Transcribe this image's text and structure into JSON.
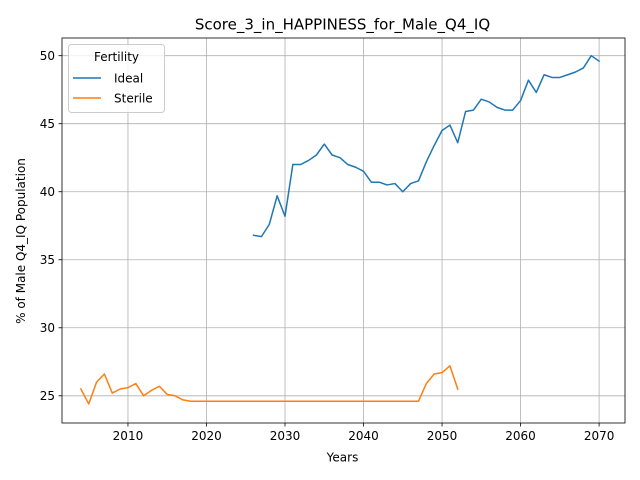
{
  "chart_data": {
    "type": "line",
    "title": "Score_3_in_HAPPINESS_for_Male_Q4_IQ",
    "xlabel": "Years",
    "ylabel": "% of Male Q4_IQ Population",
    "xlim": [
      2001.6,
      2073.3
    ],
    "ylim": [
      23.0,
      51.3
    ],
    "xticks": [
      2010,
      2020,
      2030,
      2040,
      2050,
      2060,
      2070
    ],
    "yticks": [
      25,
      30,
      35,
      40,
      45,
      50
    ],
    "grid": true,
    "legend": {
      "title": "Fertility",
      "position": "top-left"
    },
    "series": [
      {
        "name": "Ideal",
        "color": "#1f77b4",
        "x": [
          2026,
          2027,
          2028,
          2029,
          2030,
          2031,
          2032,
          2033,
          2034,
          2035,
          2036,
          2037,
          2038,
          2039,
          2040,
          2041,
          2042,
          2043,
          2044,
          2045,
          2046,
          2047,
          2048,
          2049,
          2050,
          2051,
          2052,
          2053,
          2054,
          2055,
          2056,
          2057,
          2058,
          2059,
          2060,
          2061,
          2062,
          2063,
          2064,
          2065,
          2066,
          2067,
          2068,
          2069,
          2070
        ],
        "y": [
          36.8,
          36.7,
          37.6,
          39.7,
          38.2,
          42.0,
          42.0,
          42.3,
          42.7,
          43.5,
          42.7,
          42.5,
          42.0,
          41.8,
          41.5,
          40.7,
          40.7,
          40.5,
          40.6,
          40.0,
          40.6,
          40.8,
          42.2,
          43.4,
          44.5,
          44.9,
          43.6,
          45.9,
          46.0,
          46.8,
          46.6,
          46.2,
          46.0,
          46.0,
          46.7,
          48.2,
          47.3,
          48.6,
          48.4,
          48.4,
          48.6,
          48.8,
          49.1,
          50.0,
          49.6
        ]
      },
      {
        "name": "Sterile",
        "color": "#ff7f0e",
        "x": [
          2004,
          2005,
          2006,
          2007,
          2008,
          2009,
          2010,
          2011,
          2012,
          2013,
          2014,
          2015,
          2016,
          2017,
          2018,
          2019,
          2020,
          2021,
          2022,
          2023,
          2024,
          2025,
          2026,
          2027,
          2028,
          2029,
          2030,
          2031,
          2032,
          2033,
          2034,
          2035,
          2036,
          2037,
          2038,
          2039,
          2040,
          2041,
          2042,
          2043,
          2044,
          2045,
          2046,
          2047,
          2048,
          2049,
          2050,
          2051,
          2052
        ],
        "y": [
          25.5,
          24.4,
          26.0,
          26.6,
          25.2,
          25.5,
          25.6,
          25.9,
          25.0,
          25.4,
          25.7,
          25.1,
          25.0,
          24.7,
          24.6,
          24.6,
          24.6,
          24.6,
          24.6,
          24.6,
          24.6,
          24.6,
          24.6,
          24.6,
          24.6,
          24.6,
          24.6,
          24.6,
          24.6,
          24.6,
          24.6,
          24.6,
          24.6,
          24.6,
          24.6,
          24.6,
          24.6,
          24.6,
          24.6,
          24.6,
          24.6,
          24.6,
          24.6,
          24.6,
          25.9,
          26.6,
          26.7,
          27.2,
          25.5
        ]
      }
    ]
  }
}
